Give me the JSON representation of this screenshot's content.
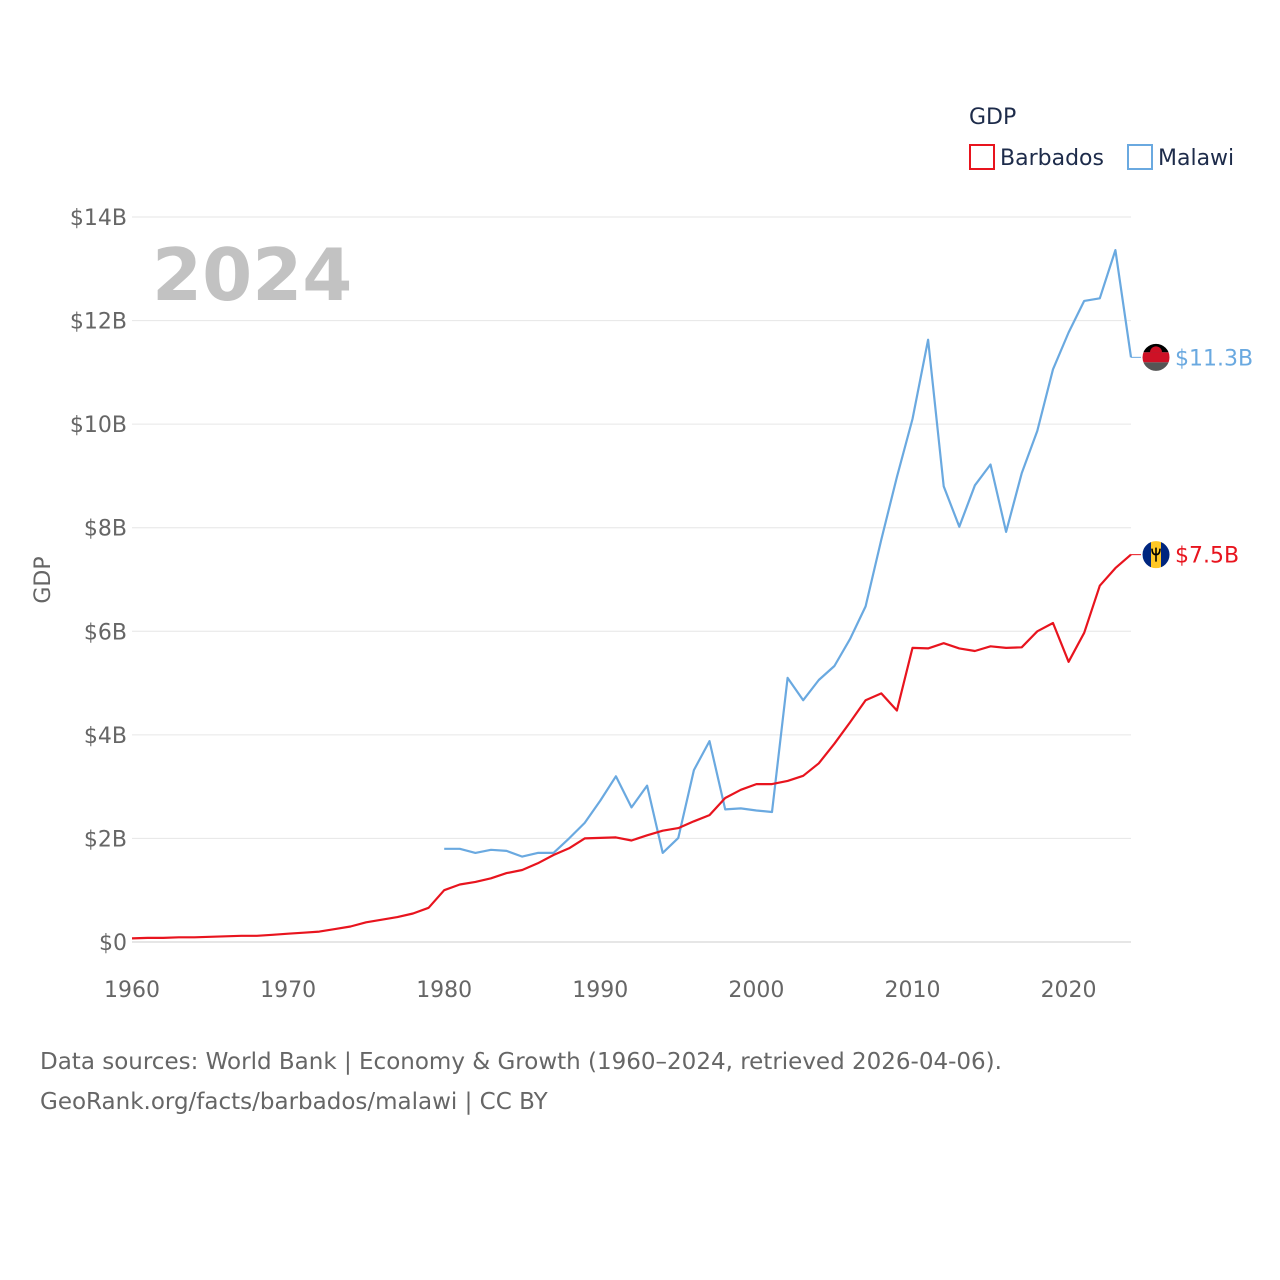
{
  "chart_data": {
    "type": "line",
    "title": "GDP",
    "ylabel": "GDP",
    "xlabel": "",
    "year_label": "2024",
    "xlim": [
      1960,
      2024
    ],
    "ylim": [
      0,
      14
    ],
    "x_ticks": [
      1960,
      1970,
      1980,
      1990,
      2000,
      2010,
      2020
    ],
    "y_ticks": [
      {
        "value": 0,
        "label": "$0"
      },
      {
        "value": 2,
        "label": "$2B"
      },
      {
        "value": 4,
        "label": "$4B"
      },
      {
        "value": 6,
        "label": "$6B"
      },
      {
        "value": 8,
        "label": "$8B"
      },
      {
        "value": 10,
        "label": "$10B"
      },
      {
        "value": 12,
        "label": "$12B"
      },
      {
        "value": 14,
        "label": "$14B"
      }
    ],
    "legend_position": "top-right",
    "series": [
      {
        "name": "Barbados",
        "color": "#e8141e",
        "end_label": "$7.5B",
        "flag": "barbados-flag-icon",
        "x": [
          1960,
          1961,
          1962,
          1963,
          1964,
          1965,
          1966,
          1967,
          1968,
          1969,
          1970,
          1971,
          1972,
          1973,
          1974,
          1975,
          1976,
          1977,
          1978,
          1979,
          1980,
          1981,
          1982,
          1983,
          1984,
          1985,
          1986,
          1987,
          1988,
          1989,
          1990,
          1991,
          1992,
          1993,
          1994,
          1995,
          1996,
          1997,
          1998,
          1999,
          2000,
          2001,
          2002,
          2003,
          2004,
          2005,
          2006,
          2007,
          2008,
          2009,
          2010,
          2011,
          2012,
          2013,
          2014,
          2015,
          2016,
          2017,
          2018,
          2019,
          2020,
          2021,
          2022,
          2023,
          2024
        ],
        "values": [
          0.07,
          0.08,
          0.08,
          0.09,
          0.09,
          0.1,
          0.11,
          0.12,
          0.12,
          0.14,
          0.16,
          0.18,
          0.2,
          0.25,
          0.3,
          0.38,
          0.43,
          0.48,
          0.55,
          0.66,
          1.0,
          1.11,
          1.16,
          1.23,
          1.33,
          1.39,
          1.52,
          1.68,
          1.81,
          2.0,
          2.01,
          2.02,
          1.96,
          2.06,
          2.15,
          2.2,
          2.33,
          2.45,
          2.78,
          2.94,
          3.05,
          3.05,
          3.11,
          3.21,
          3.45,
          3.83,
          4.24,
          4.67,
          4.8,
          4.47,
          5.68,
          5.67,
          5.77,
          5.67,
          5.62,
          5.71,
          5.68,
          5.69,
          6.0,
          6.16,
          5.41,
          5.97,
          6.88,
          7.22,
          7.48
        ]
      },
      {
        "name": "Malawi",
        "color": "#6aa9e0",
        "end_label": "$11.3B",
        "flag": "malawi-flag-icon",
        "x": [
          1980,
          1981,
          1982,
          1983,
          1984,
          1985,
          1986,
          1987,
          1988,
          1989,
          1990,
          1991,
          1992,
          1993,
          1994,
          1995,
          1996,
          1997,
          1998,
          1999,
          2000,
          2001,
          2002,
          2003,
          2004,
          2005,
          2006,
          2007,
          2008,
          2009,
          2010,
          2011,
          2012,
          2013,
          2014,
          2015,
          2016,
          2017,
          2018,
          2019,
          2020,
          2021,
          2022,
          2023,
          2024
        ],
        "values": [
          1.8,
          1.8,
          1.72,
          1.78,
          1.76,
          1.65,
          1.72,
          1.72,
          2.0,
          2.3,
          2.73,
          3.2,
          2.6,
          3.02,
          1.72,
          2.01,
          3.32,
          3.88,
          2.56,
          2.58,
          2.54,
          2.51,
          5.1,
          4.67,
          5.06,
          5.33,
          5.85,
          6.48,
          7.77,
          8.98,
          10.1,
          11.63,
          8.8,
          8.02,
          8.82,
          9.22,
          7.92,
          9.05,
          9.87,
          11.06,
          11.77,
          12.38,
          12.43,
          13.36,
          11.29
        ]
      }
    ]
  },
  "footer": {
    "line1": "Data sources: World Bank | Economy & Growth (1960–2024, retrieved 2026-04-06).",
    "line2": "GeoRank.org/facts/barbados/malawi | CC BY"
  }
}
